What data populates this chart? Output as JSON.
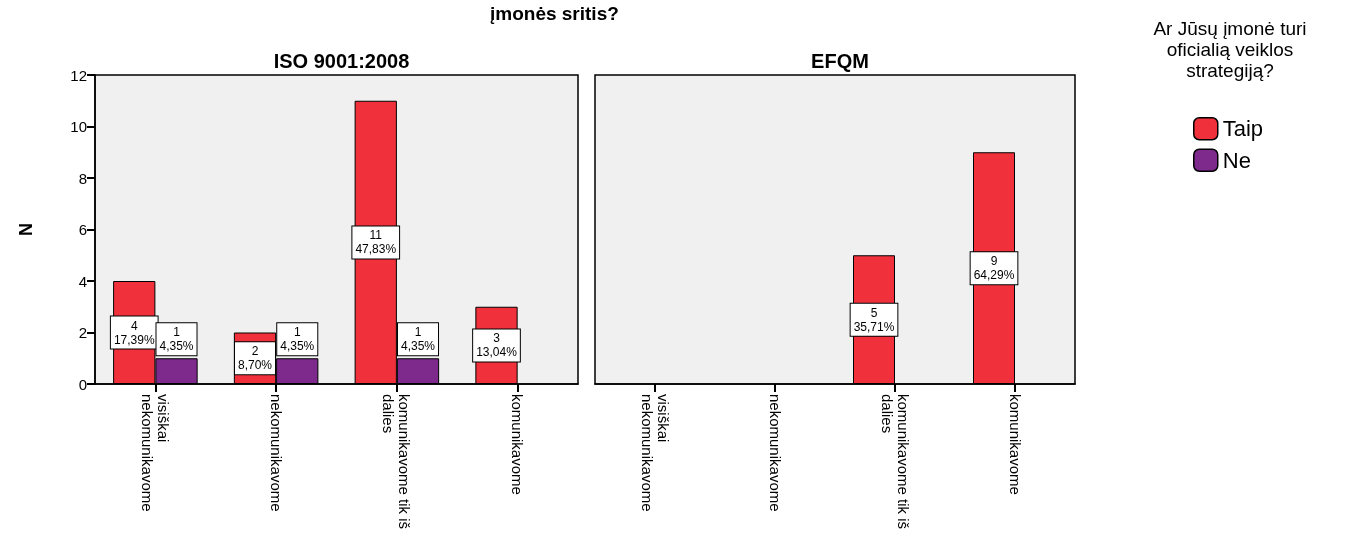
{
  "chart_data": [
    {
      "type": "bar",
      "title": "ISO 9001:2008",
      "annotations": [
        "įmonės sritis?"
      ],
      "ylabel": "N",
      "categories": [
        "visiškai nekomunikavome",
        "nekomunikavome",
        "komunikavome tik iš dalies",
        "komunikavome"
      ],
      "series": [
        {
          "color": "#f0313b",
          "values": [
            4,
            2,
            11,
            3
          ],
          "value_labels": [
            "4\n17,39%",
            "2\n8,70%",
            "11\n47,83%",
            "3\n13,04%"
          ]
        },
        {
          "color": "#7d2a8c",
          "values": [
            1,
            1,
            1,
            null
          ],
          "value_labels": [
            "1\n4,35%",
            "1\n4,35%",
            "1\n4,35%",
            null
          ]
        }
      ],
      "ylim": [
        0,
        12
      ],
      "yticks": [
        0,
        2,
        4,
        6,
        8,
        10,
        12
      ],
      "grid": false,
      "legend": false
    },
    {
      "type": "bar",
      "title": "EFQM",
      "categories": [
        "visiškai nekomunikavome",
        "nekomunikavome",
        "komunikavome tik iš dalies",
        "komunikavome"
      ],
      "series": [
        {
          "name": "Taip",
          "color": "#f0313b",
          "values": [
            null,
            null,
            5,
            9
          ],
          "value_labels": [
            null,
            null,
            "5\n35,71%",
            "9\n64,29%"
          ]
        },
        {
          "name": "Ne",
          "color": "#7d2a8c",
          "values": [
            null,
            null,
            null,
            null
          ],
          "value_labels": [
            null,
            null,
            null,
            null
          ]
        }
      ],
      "ylim": [
        0,
        12
      ],
      "yticks": [
        0,
        2,
        4,
        6,
        8,
        10,
        12
      ],
      "tick_labels": "x",
      "grid": false,
      "legend": "right",
      "legend_title": "Ar Jūsų įmonė turi oficialią veiklos strategiją?"
    }
  ]
}
